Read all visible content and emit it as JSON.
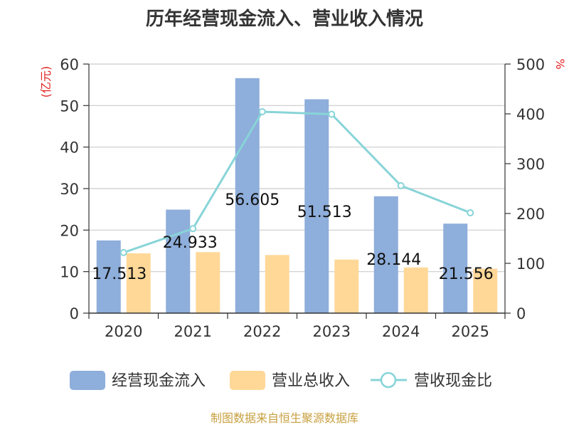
{
  "chart_data": {
    "type": "bar",
    "title": "历年经营现金流入、营业收入情况",
    "categories": [
      "2020",
      "2021",
      "2022",
      "2023",
      "2024",
      "2025"
    ],
    "series": [
      {
        "name": "经营现金流入",
        "kind": "bar",
        "axis": "left",
        "color": "#8eaedb",
        "values": [
          17.513,
          24.933,
          56.605,
          51.513,
          28.144,
          21.556
        ],
        "labels": [
          "17.513",
          "24.933",
          "56.605",
          "51.513",
          "28.144",
          "21.556"
        ]
      },
      {
        "name": "营业总收入",
        "kind": "bar",
        "axis": "left",
        "color": "#ffd898",
        "values": [
          14.4,
          14.7,
          14.0,
          12.9,
          11.0,
          10.7
        ]
      },
      {
        "name": "营收现金比",
        "kind": "line",
        "axis": "right",
        "color": "#88d4d8",
        "values": [
          121.6,
          169.6,
          404.3,
          399.3,
          255.9,
          201.5
        ]
      }
    ],
    "ylabel_left": "(亿元)",
    "ylabel_right": "%",
    "ylim_left": [
      0,
      60
    ],
    "ylim_right": [
      0,
      500
    ],
    "yticks_left": [
      "0",
      "10",
      "20",
      "30",
      "40",
      "50",
      "60"
    ],
    "yticks_right": [
      "0",
      "100",
      "200",
      "300",
      "400",
      "500"
    ],
    "grid": true,
    "legend": "bottom",
    "source": "制图数据来自恒生聚源数据库"
  }
}
